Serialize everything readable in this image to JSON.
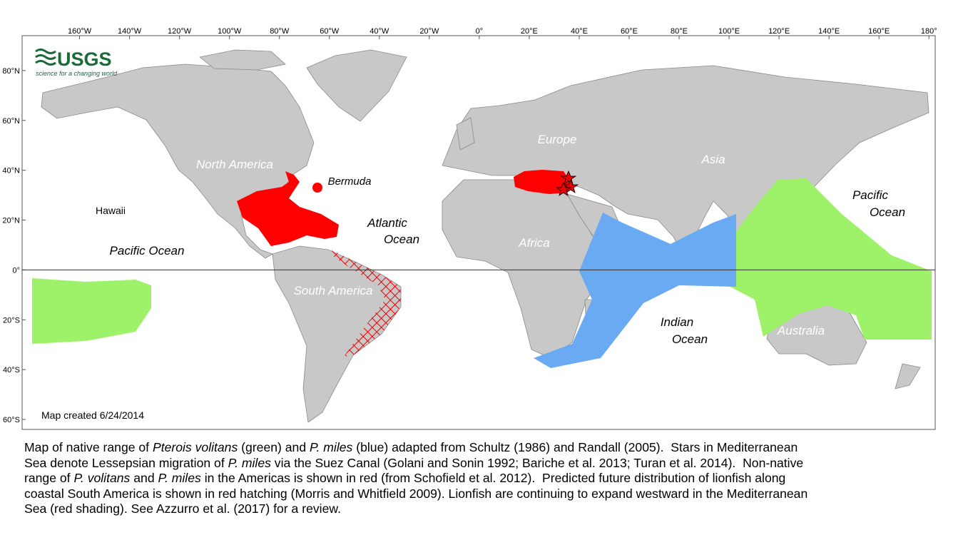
{
  "logo": {
    "name": "USGS",
    "tagline": "science for a changing world"
  },
  "map": {
    "xlim": [
      -183,
      182.5
    ],
    "ylim": [
      -64,
      94
    ],
    "xticks": [
      {
        "value": -160,
        "label": "160°W"
      },
      {
        "value": -140,
        "label": "140°W"
      },
      {
        "value": -120,
        "label": "120°W"
      },
      {
        "value": -100,
        "label": "100°W"
      },
      {
        "value": -80,
        "label": "80°W"
      },
      {
        "value": -60,
        "label": "60°W"
      },
      {
        "value": -40,
        "label": "40°W"
      },
      {
        "value": -20,
        "label": "20°W"
      },
      {
        "value": 0,
        "label": "0°"
      },
      {
        "value": 20,
        "label": "20°E"
      },
      {
        "value": 40,
        "label": "40°E"
      },
      {
        "value": 60,
        "label": "60°E"
      },
      {
        "value": 80,
        "label": "80°E"
      },
      {
        "value": 100,
        "label": "100°E"
      },
      {
        "value": 120,
        "label": "120°E"
      },
      {
        "value": 140,
        "label": "140°E"
      },
      {
        "value": 160,
        "label": "160°E"
      },
      {
        "value": 180,
        "label": "180°"
      }
    ],
    "yticks": [
      {
        "value": 80,
        "label": "80°N"
      },
      {
        "value": 60,
        "label": "60°N"
      },
      {
        "value": 40,
        "label": "40°N"
      },
      {
        "value": 20,
        "label": "20°N"
      },
      {
        "value": 0,
        "label": "0°"
      },
      {
        "value": -20,
        "label": "20°S"
      },
      {
        "value": -40,
        "label": "40°S"
      },
      {
        "value": -60,
        "label": "60°S"
      }
    ]
  },
  "labels": {
    "land": [
      "North America",
      "South America",
      "Africa",
      "Europe",
      "Asia",
      "Australia"
    ],
    "places": [
      "Bermuda",
      "Hawaii"
    ],
    "oceans": [
      [
        "Pacific Ocean"
      ],
      [
        "Atlantic",
        "Ocean"
      ],
      [
        "Indian",
        "Ocean"
      ],
      [
        "Pacific",
        "Ocean"
      ]
    ]
  },
  "credit": "Map created 6/24/2014",
  "caption": [
    [
      "Map of native range of ",
      {
        "text": "Pterois volitans",
        "style": "italic"
      },
      " (green) and ",
      {
        "text": "P. miles",
        "style": "italic"
      },
      " (blue) adapted from Schultz (1986) and Randall (2005).  Stars in Mediterranean"
    ],
    [
      "Sea denote Lessepsian migration of ",
      {
        "text": "P. miles",
        "style": "italic"
      },
      " via the Suez Canal (Golani and Sonin 1992; Bariche et al. 2013; Turan et al. 2014).  Non-native"
    ],
    [
      "range of ",
      {
        "text": "P. volitans",
        "style": "italic"
      },
      " and ",
      {
        "text": "P. miles",
        "style": "italic"
      },
      " in the Americas is shown in red (from Schofield et al. 2012).  Predicted future distribution of lionfish along"
    ],
    [
      "coastal South America is shown in red hatching (Morris and Whitfield 2009). Lionfish are continuing to expand westward in the Mediterranean"
    ],
    [
      "Sea (red shading). See Azzurro et al. (2017) for a review."
    ]
  ]
}
